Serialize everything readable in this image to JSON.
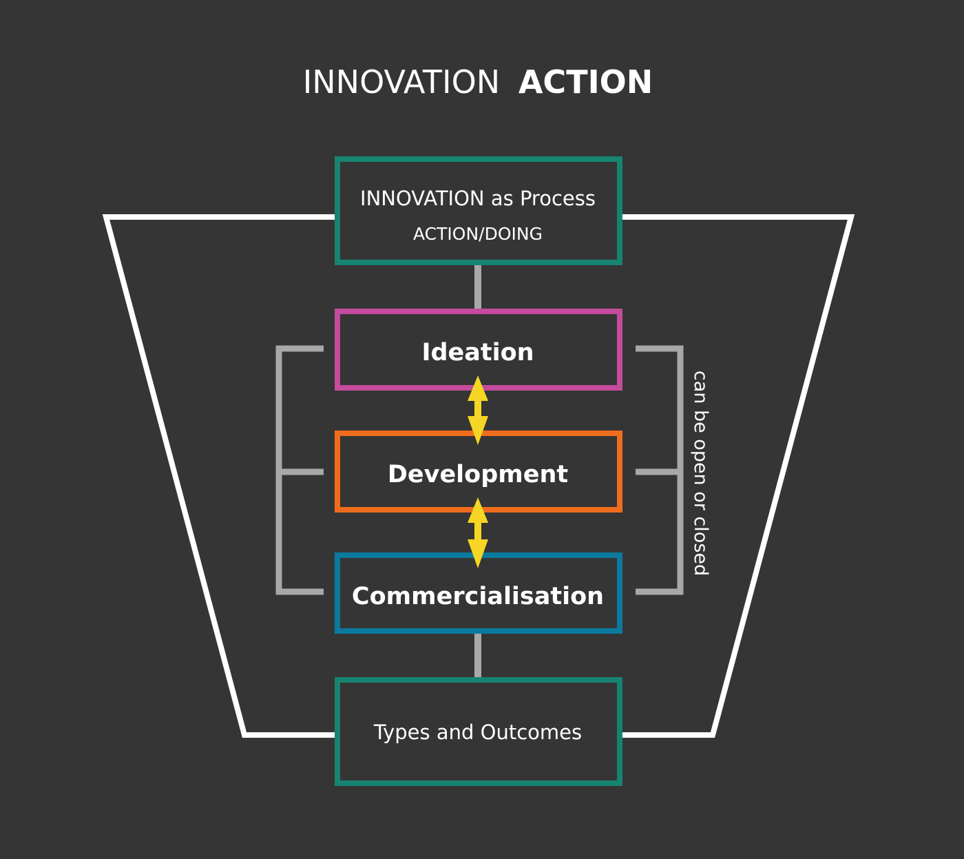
{
  "title": {
    "part1": "INNOVATION",
    "part2": "ACTION"
  },
  "boxes": {
    "process": {
      "title": "INNOVATION as Process",
      "subtitle": "ACTION/DOING",
      "color": "#168471"
    },
    "ideation": {
      "label": "Ideation",
      "color": "#c54b9c"
    },
    "development": {
      "label": "Development",
      "color": "#f06c1d"
    },
    "commercialisation": {
      "label": "Commercialisation",
      "color": "#0b7a9e"
    },
    "outcomes": {
      "label": "Types and Outcomes",
      "color": "#168471"
    }
  },
  "side_label": "can be open or closed",
  "colors": {
    "background": "#353535",
    "funnel": "#ffffff",
    "connector": "#a8a8a8",
    "arrow": "#f6d624"
  }
}
